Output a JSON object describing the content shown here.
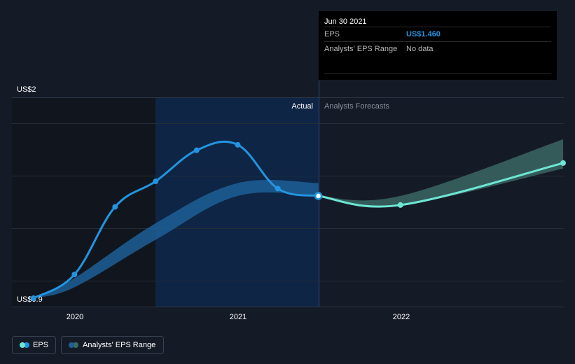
{
  "tooltip": {
    "date": "Jun 30 2021",
    "eps_label": "EPS",
    "eps_value": "US$1.460",
    "range_label": "Analysts' EPS Range",
    "range_value": "No data"
  },
  "labels": {
    "actual": "Actual",
    "forecast": "Analysts Forecasts"
  },
  "legend": {
    "eps": "EPS",
    "range": "Analysts' EPS Range"
  },
  "colors": {
    "background": "#151b26",
    "eps_line": "#2394df",
    "forecast_line": "#6ee6d4",
    "range_band_actual": "#1d5f96",
    "range_band_forecast": "#3c6a66",
    "actual_region": "#0e2545",
    "past_shade": "#11161e"
  },
  "chart_data": {
    "type": "line",
    "y_tick_labels": [
      "US$2",
      "US$0.9"
    ],
    "x_tick_labels": [
      "2020",
      "2021",
      "2022"
    ],
    "ylim": [
      0.9,
      2.0
    ],
    "grid": true,
    "series": [
      {
        "name": "EPS",
        "kind": "actual",
        "points": [
          {
            "x": "2019-09-30",
            "y": 0.9
          },
          {
            "x": "2019-12-31",
            "y": 1.03
          },
          {
            "x": "2020-03-31",
            "y": 1.4
          },
          {
            "x": "2020-06-30",
            "y": 1.54
          },
          {
            "x": "2020-09-30",
            "y": 1.71
          },
          {
            "x": "2020-12-31",
            "y": 1.74
          },
          {
            "x": "2021-03-31",
            "y": 1.5
          },
          {
            "x": "2021-06-30",
            "y": 1.46
          }
        ]
      },
      {
        "name": "EPS",
        "kind": "forecast",
        "points": [
          {
            "x": "2021-06-30",
            "y": 1.46
          },
          {
            "x": "2021-12-31",
            "y": 1.41
          },
          {
            "x": "2022-12-31",
            "y": 1.64
          }
        ]
      },
      {
        "name": "Analysts' EPS Range",
        "kind": "range_actual",
        "lower": [
          {
            "x": "2019-09-30",
            "y": 0.9
          },
          {
            "x": "2019-12-31",
            "y": 0.96
          },
          {
            "x": "2020-06-30",
            "y": 1.22
          },
          {
            "x": "2020-12-31",
            "y": 1.46
          },
          {
            "x": "2021-06-30",
            "y": 1.46
          }
        ],
        "upper": [
          {
            "x": "2019-09-30",
            "y": 0.9
          },
          {
            "x": "2019-12-31",
            "y": 1.01
          },
          {
            "x": "2020-06-30",
            "y": 1.31
          },
          {
            "x": "2020-12-31",
            "y": 1.53
          },
          {
            "x": "2021-06-30",
            "y": 1.53
          }
        ]
      },
      {
        "name": "Analysts' EPS Range",
        "kind": "range_forecast",
        "lower": [
          {
            "x": "2021-06-30",
            "y": 1.46
          },
          {
            "x": "2021-12-31",
            "y": 1.41
          },
          {
            "x": "2022-12-31",
            "y": 1.61
          }
        ],
        "upper": [
          {
            "x": "2021-06-30",
            "y": 1.46
          },
          {
            "x": "2021-12-31",
            "y": 1.46
          },
          {
            "x": "2022-12-31",
            "y": 1.77
          }
        ]
      }
    ]
  }
}
